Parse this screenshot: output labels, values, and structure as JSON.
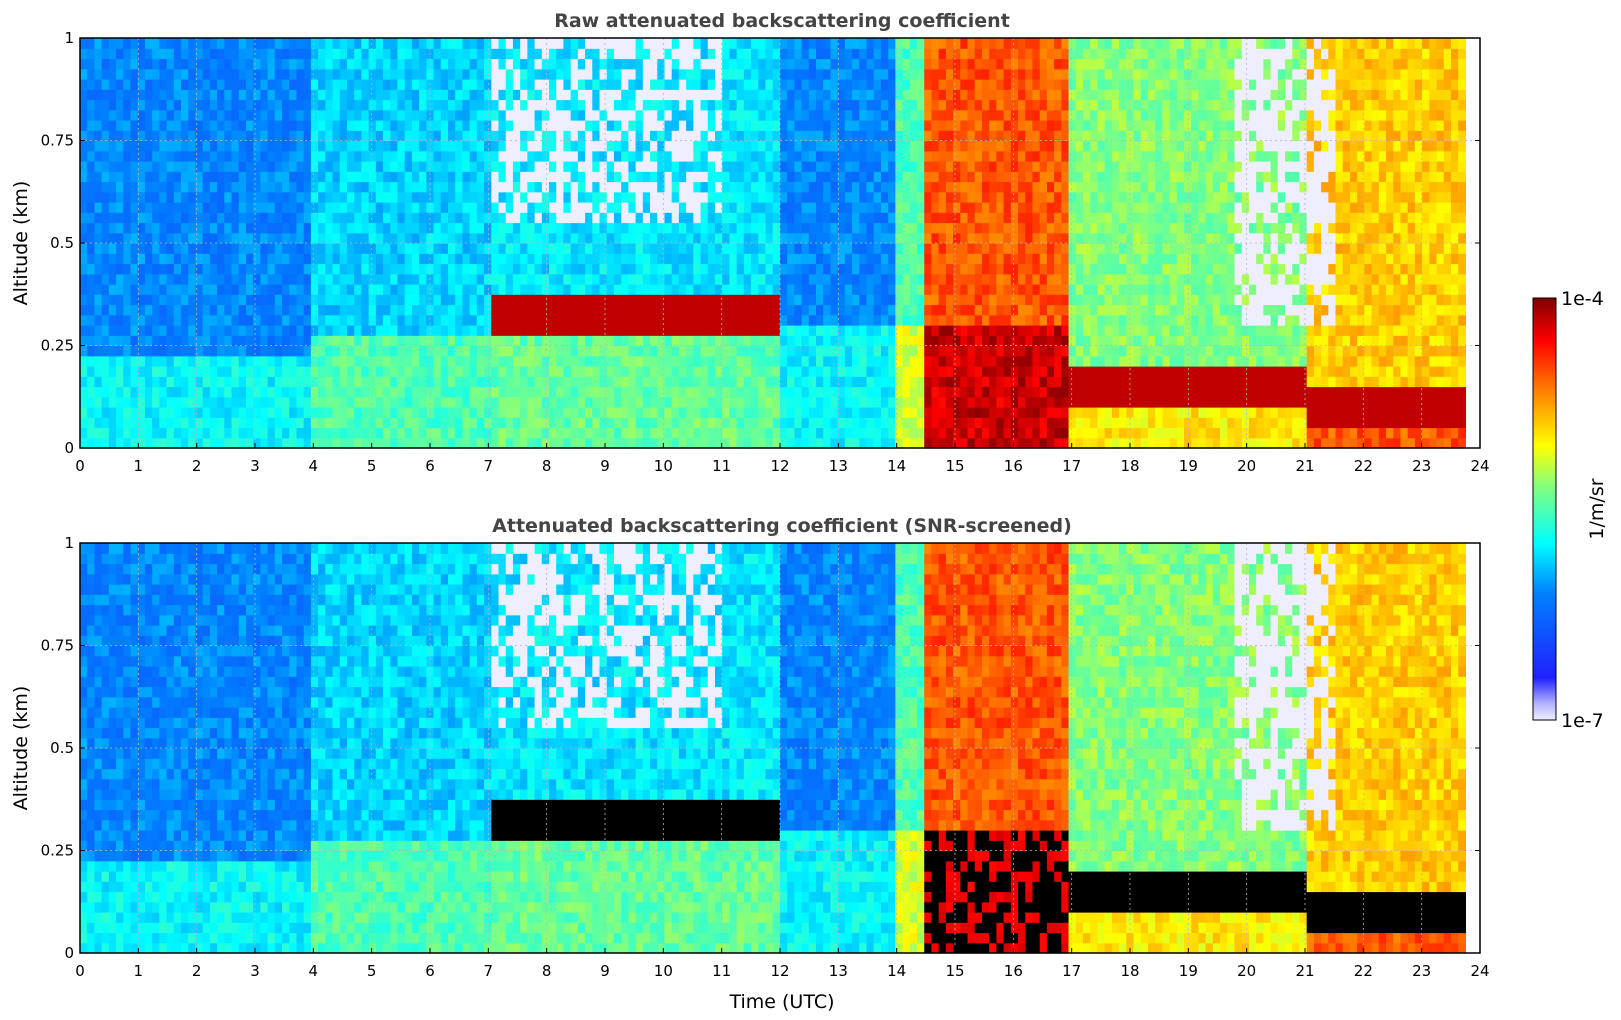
{
  "chart_data": [
    {
      "type": "heatmap",
      "title": "Raw attenuated backscattering coefficient",
      "xlabel": "",
      "ylabel": "Altitude (km)",
      "xlim": [
        0,
        24
      ],
      "ylim": [
        0,
        1
      ],
      "x_ticks": [
        "0",
        "1",
        "2",
        "3",
        "4",
        "5",
        "6",
        "7",
        "8",
        "9",
        "10",
        "11",
        "12",
        "13",
        "14",
        "15",
        "16",
        "17",
        "18",
        "19",
        "20",
        "21",
        "22",
        "23",
        "24"
      ],
      "y_ticks": [
        "0",
        "0.25",
        "0.5",
        "0.75",
        "1"
      ],
      "grid": true,
      "colormap": "jet",
      "color_scale": "log",
      "data_end_hour": 23.75,
      "regimes": [
        {
          "from": 0,
          "to": 4,
          "level": 0.3
        },
        {
          "from": 4,
          "to": 7,
          "level": 0.38
        },
        {
          "from": 7,
          "to": 12,
          "level": 0.4
        },
        {
          "from": 12,
          "to": 14,
          "level": 0.3
        },
        {
          "from": 14,
          "to": 14.5,
          "level": 0.5
        },
        {
          "from": 14.5,
          "to": 17,
          "level": 0.82
        },
        {
          "from": 17,
          "to": 21,
          "level": 0.55
        },
        {
          "from": 21,
          "to": 23.75,
          "level": 0.7
        }
      ]
    },
    {
      "type": "heatmap",
      "title": "Attenuated backscattering coefficient (SNR-screened)",
      "xlabel": "Time (UTC)",
      "ylabel": "Altitude (km)",
      "xlim": [
        0,
        24
      ],
      "ylim": [
        0,
        1
      ],
      "x_ticks": [
        "0",
        "1",
        "2",
        "3",
        "4",
        "5",
        "6",
        "7",
        "8",
        "9",
        "10",
        "11",
        "12",
        "13",
        "14",
        "15",
        "16",
        "17",
        "18",
        "19",
        "20",
        "21",
        "22",
        "23",
        "24"
      ],
      "y_ticks": [
        "0",
        "0.25",
        "0.5",
        "0.75",
        "1"
      ],
      "grid": true,
      "colormap": "jet",
      "color_scale": "log",
      "data_end_hour": 23.75,
      "screened_color": "#000000"
    }
  ],
  "colorbar": {
    "label": "1/m/sr",
    "max_label": "1e-4",
    "min_label": "1e-7",
    "range": [
      1e-07,
      0.0001
    ],
    "colors": [
      "#7f0000",
      "#ff0000",
      "#ff7f00",
      "#ffff00",
      "#7fff7f",
      "#00ffff",
      "#007fff",
      "#0000ff",
      "#00008f"
    ]
  }
}
